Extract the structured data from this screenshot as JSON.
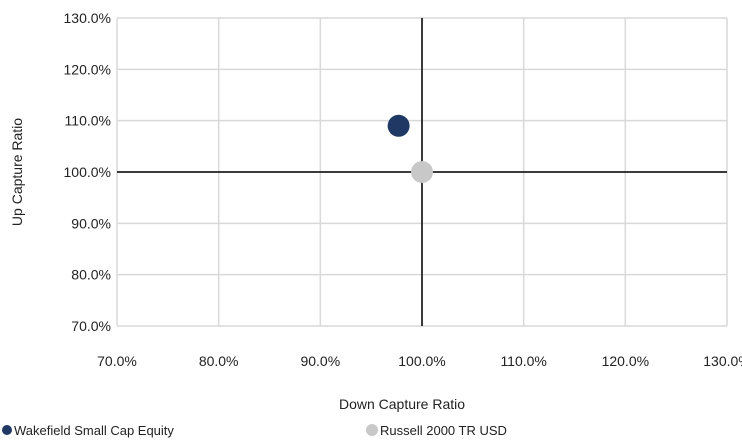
{
  "chart_data": {
    "type": "scatter",
    "title": "",
    "xlabel": "Down Capture Ratio",
    "ylabel": "Up Capture Ratio",
    "xlim": [
      70,
      130
    ],
    "ylim": [
      70,
      130
    ],
    "x_ticks": [
      "70.0%",
      "80.0%",
      "90.0%",
      "100.0%",
      "110.0%",
      "120.0%",
      "130.0%"
    ],
    "y_ticks": [
      "130.0%",
      "120.0%",
      "110.0%",
      "100.0%",
      "90.0%",
      "80.0%",
      "70.0%"
    ],
    "grid": true,
    "reference_lines": {
      "x": 100,
      "y": 100
    },
    "legend_position": "bottom",
    "series": [
      {
        "name": "Wakefield Small Cap Equity",
        "color": "#1f3864",
        "points": [
          {
            "x": 97.7,
            "y": 109.0
          }
        ]
      },
      {
        "name": "Russell 2000 TR USD",
        "color": "#c8c8c8",
        "points": [
          {
            "x": 100.0,
            "y": 100.0
          }
        ]
      }
    ]
  }
}
